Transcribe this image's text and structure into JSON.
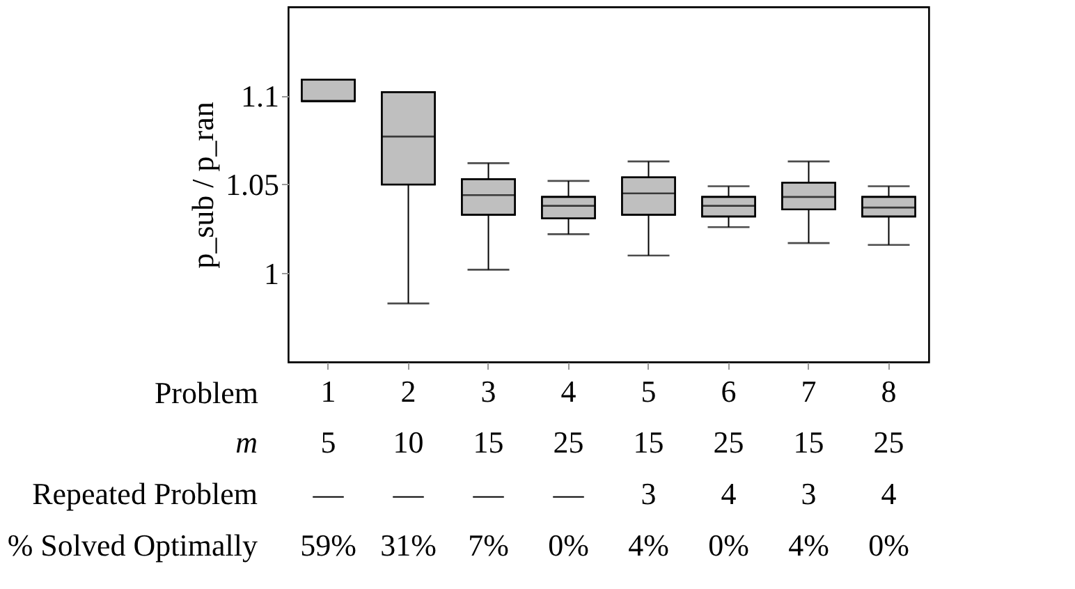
{
  "chart_data": {
    "type": "box",
    "ylabel": "p_sub / p_ran",
    "xlabel": "Problem",
    "categories": [
      "1",
      "2",
      "3",
      "4",
      "5",
      "6",
      "7",
      "8"
    ],
    "series": [
      {
        "color": "#bfbfbf",
        "boxes": [
          {
            "low": 1.097,
            "q1": 1.097,
            "median": 1.097,
            "q3": 1.109,
            "high": 1.109
          },
          {
            "low": 0.983,
            "q1": 1.05,
            "median": 1.077,
            "q3": 1.102,
            "high": 1.102
          },
          {
            "low": 1.002,
            "q1": 1.033,
            "median": 1.044,
            "q3": 1.053,
            "high": 1.062
          },
          {
            "low": 1.022,
            "q1": 1.031,
            "median": 1.038,
            "q3": 1.043,
            "high": 1.052
          },
          {
            "low": 1.01,
            "q1": 1.033,
            "median": 1.045,
            "q3": 1.054,
            "high": 1.063
          },
          {
            "low": 1.026,
            "q1": 1.032,
            "median": 1.038,
            "q3": 1.043,
            "high": 1.049
          },
          {
            "low": 1.017,
            "q1": 1.036,
            "median": 1.043,
            "q3": 1.051,
            "high": 1.063
          },
          {
            "low": 1.016,
            "q1": 1.032,
            "median": 1.037,
            "q3": 1.043,
            "high": 1.049
          }
        ]
      }
    ],
    "ylim": [
      0.95,
      1.15
    ],
    "yticks": [
      {
        "value": 1,
        "label": "1"
      },
      1.05,
      {
        "value": 1.1,
        "label": "1.1"
      }
    ],
    "grid": false,
    "annotations": [
      "m",
      "5",
      "10",
      "15",
      "25",
      "15",
      "25",
      "15",
      "25",
      "Repeated Problem",
      "—",
      "—",
      "—",
      "—",
      "3",
      "4",
      "3",
      "4",
      "% Solved Optimally",
      "59%",
      "31%",
      "7%",
      "0%",
      "4%",
      "0%",
      "4%",
      "0%"
    ]
  }
}
